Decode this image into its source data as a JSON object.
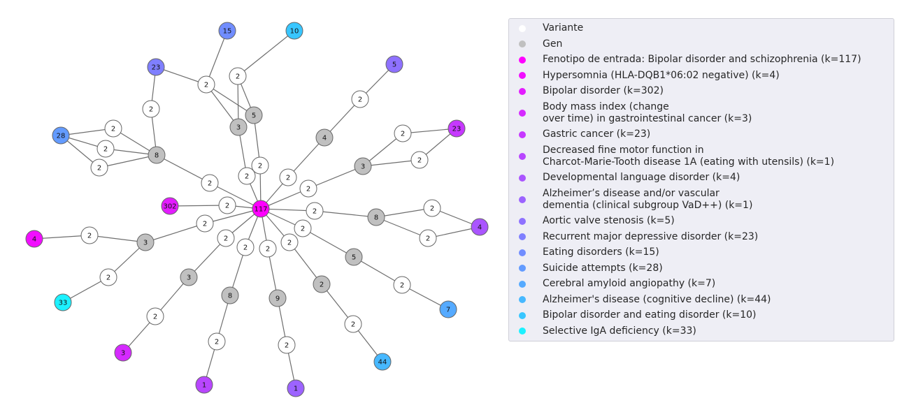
{
  "graph": {
    "nodes": [
      {
        "id": "root",
        "label": "117",
        "group": "input"
      },
      {
        "id": "c302",
        "label": "2",
        "group": "variant"
      },
      {
        "id": "p302",
        "label": "302",
        "group": "bipolar_disorder"
      },
      {
        "id": "c8l",
        "label": "2",
        "group": "variant"
      },
      {
        "id": "g8l",
        "label": "8",
        "group": "gene"
      },
      {
        "id": "a1",
        "label": "2",
        "group": "variant"
      },
      {
        "id": "a2",
        "label": "2",
        "group": "variant"
      },
      {
        "id": "a3",
        "label": "2",
        "group": "variant"
      },
      {
        "id": "p28",
        "label": "28",
        "group": "suicide"
      },
      {
        "id": "a4",
        "label": "2",
        "group": "variant"
      },
      {
        "id": "p23l",
        "label": "23",
        "group": "mdd"
      },
      {
        "id": "c5",
        "label": "2",
        "group": "variant"
      },
      {
        "id": "c3t",
        "label": "2",
        "group": "variant"
      },
      {
        "id": "g5",
        "label": "5",
        "group": "gene"
      },
      {
        "id": "g3t",
        "label": "3",
        "group": "gene"
      },
      {
        "id": "b1",
        "label": "2",
        "group": "variant"
      },
      {
        "id": "b2",
        "label": "2",
        "group": "variant"
      },
      {
        "id": "b3",
        "label": "2",
        "group": "variant"
      },
      {
        "id": "p15",
        "label": "15",
        "group": "eating"
      },
      {
        "id": "p10",
        "label": "10",
        "group": "bipolar_eating"
      },
      {
        "id": "c4",
        "label": "2",
        "group": "variant"
      },
      {
        "id": "g4",
        "label": "4",
        "group": "gene"
      },
      {
        "id": "d1",
        "label": "2",
        "group": "variant"
      },
      {
        "id": "p5",
        "label": "5",
        "group": "aortic"
      },
      {
        "id": "c3r",
        "label": "2",
        "group": "variant"
      },
      {
        "id": "g3r",
        "label": "3",
        "group": "gene"
      },
      {
        "id": "e1",
        "label": "2",
        "group": "variant"
      },
      {
        "id": "e2",
        "label": "2",
        "group": "variant"
      },
      {
        "id": "p23r",
        "label": "23",
        "group": "gastric"
      },
      {
        "id": "c8r",
        "label": "2",
        "group": "variant"
      },
      {
        "id": "g8r",
        "label": "8",
        "group": "gene"
      },
      {
        "id": "f1",
        "label": "2",
        "group": "variant"
      },
      {
        "id": "f2",
        "label": "2",
        "group": "variant"
      },
      {
        "id": "p4r",
        "label": "4",
        "group": "dev_language"
      },
      {
        "id": "c5r",
        "label": "2",
        "group": "variant"
      },
      {
        "id": "g5r",
        "label": "5",
        "group": "gene"
      },
      {
        "id": "h1",
        "label": "2",
        "group": "variant"
      },
      {
        "id": "p7",
        "label": "7",
        "group": "caa"
      },
      {
        "id": "c2s",
        "label": "2",
        "group": "variant"
      },
      {
        "id": "g2s",
        "label": "2",
        "group": "gene"
      },
      {
        "id": "i1",
        "label": "2",
        "group": "variant"
      },
      {
        "id": "p44",
        "label": "44",
        "group": "alz_decline"
      },
      {
        "id": "c9",
        "label": "2",
        "group": "variant"
      },
      {
        "id": "g9",
        "label": "9",
        "group": "gene"
      },
      {
        "id": "j1",
        "label": "2",
        "group": "variant"
      },
      {
        "id": "p1b",
        "label": "1",
        "group": "alz_vascular"
      },
      {
        "id": "c8b",
        "label": "2",
        "group": "variant"
      },
      {
        "id": "g8b",
        "label": "8",
        "group": "gene"
      },
      {
        "id": "k1",
        "label": "2",
        "group": "variant"
      },
      {
        "id": "p1a",
        "label": "1",
        "group": "fine_motor"
      },
      {
        "id": "c3b",
        "label": "2",
        "group": "variant"
      },
      {
        "id": "g3b",
        "label": "3",
        "group": "gene"
      },
      {
        "id": "m1",
        "label": "2",
        "group": "variant"
      },
      {
        "id": "p3",
        "label": "3",
        "group": "bmi"
      },
      {
        "id": "c3l",
        "label": "2",
        "group": "variant"
      },
      {
        "id": "g3l",
        "label": "3",
        "group": "gene"
      },
      {
        "id": "n1",
        "label": "2",
        "group": "variant"
      },
      {
        "id": "p4l",
        "label": "4",
        "group": "hypersomnia"
      },
      {
        "id": "n2",
        "label": "2",
        "group": "variant"
      },
      {
        "id": "p33",
        "label": "33",
        "group": "iga"
      }
    ],
    "edges": [
      [
        "root",
        "c302"
      ],
      [
        "c302",
        "p302"
      ],
      [
        "root",
        "c8l"
      ],
      [
        "c8l",
        "g8l"
      ],
      [
        "g8l",
        "a1"
      ],
      [
        "g8l",
        "a2"
      ],
      [
        "g8l",
        "a3"
      ],
      [
        "a1",
        "p28"
      ],
      [
        "a2",
        "p28"
      ],
      [
        "a3",
        "p28"
      ],
      [
        "g8l",
        "a4"
      ],
      [
        "a4",
        "p23l"
      ],
      [
        "root",
        "c5"
      ],
      [
        "c5",
        "g5"
      ],
      [
        "root",
        "c3t"
      ],
      [
        "c3t",
        "g3t"
      ],
      [
        "g5",
        "b1"
      ],
      [
        "g3t",
        "b1"
      ],
      [
        "g5",
        "b2"
      ],
      [
        "g3t",
        "b2"
      ],
      [
        "b1",
        "p23l"
      ],
      [
        "b1",
        "p15"
      ],
      [
        "b2",
        "p10"
      ],
      [
        "root",
        "c4"
      ],
      [
        "c4",
        "g4"
      ],
      [
        "g4",
        "d1"
      ],
      [
        "d1",
        "p5"
      ],
      [
        "root",
        "c3r"
      ],
      [
        "c3r",
        "g3r"
      ],
      [
        "g3r",
        "e1"
      ],
      [
        "g3r",
        "e2"
      ],
      [
        "e1",
        "p23r"
      ],
      [
        "e2",
        "p23r"
      ],
      [
        "root",
        "c8r"
      ],
      [
        "c8r",
        "g8r"
      ],
      [
        "g8r",
        "f1"
      ],
      [
        "g8r",
        "f2"
      ],
      [
        "f1",
        "p4r"
      ],
      [
        "f2",
        "p4r"
      ],
      [
        "root",
        "c5r"
      ],
      [
        "c5r",
        "g5r"
      ],
      [
        "g5r",
        "h1"
      ],
      [
        "h1",
        "p7"
      ],
      [
        "root",
        "c2s"
      ],
      [
        "c2s",
        "g2s"
      ],
      [
        "g2s",
        "i1"
      ],
      [
        "i1",
        "p44"
      ],
      [
        "root",
        "c9"
      ],
      [
        "c9",
        "g9"
      ],
      [
        "g9",
        "j1"
      ],
      [
        "j1",
        "p1b"
      ],
      [
        "root",
        "c8b"
      ],
      [
        "c8b",
        "g8b"
      ],
      [
        "g8b",
        "k1"
      ],
      [
        "k1",
        "p1a"
      ],
      [
        "root",
        "c3b"
      ],
      [
        "c3b",
        "g3b"
      ],
      [
        "g3b",
        "m1"
      ],
      [
        "m1",
        "p3"
      ],
      [
        "root",
        "c3l"
      ],
      [
        "c3l",
        "g3l"
      ],
      [
        "g3l",
        "n1"
      ],
      [
        "n1",
        "p4l"
      ],
      [
        "g3l",
        "n2"
      ],
      [
        "n2",
        "p33"
      ]
    ]
  },
  "legend": {
    "items": [
      {
        "key": "variant",
        "label": "Variante",
        "color": "#ffffff"
      },
      {
        "key": "gene",
        "label": "Gen",
        "color": "#c0c0c0"
      },
      {
        "key": "input",
        "label": "Fenotipo de entrada: Bipolar disorder and schizophrenia (k=117)",
        "color": "#ff00ff"
      },
      {
        "key": "hypersomnia",
        "label": "Hypersomnia (HLA-DQB1*06:02 negative) (k=4)",
        "color": "#f10eff"
      },
      {
        "key": "bipolar_disorder",
        "label": "Bipolar disorder (k=302)",
        "color": "#e31cff"
      },
      {
        "key": "bmi",
        "label": "Body mass index (change\nover time) in gastrointestinal cancer (k=3)",
        "color": "#d52aff"
      },
      {
        "key": "gastric",
        "label": "Gastric cancer (k=23)",
        "color": "#c638ff"
      },
      {
        "key": "fine_motor",
        "label": "Decreased fine motor function in\nCharcot-Marie-Tooth disease 1A (eating with utensils) (k=1)",
        "color": "#b846ff"
      },
      {
        "key": "dev_language",
        "label": "Developmental language disorder (k=4)",
        "color": "#aa55ff"
      },
      {
        "key": "alz_vascular",
        "label": "Alzheimer’s disease and/or vascular\ndementia (clinical subgroup VaD++) (k=1)",
        "color": "#9c63ff"
      },
      {
        "key": "aortic",
        "label": "Aortic valve stenosis (k=5)",
        "color": "#8e71ff"
      },
      {
        "key": "mdd",
        "label": "Recurrent major depressive disorder (k=23)",
        "color": "#7f7fff"
      },
      {
        "key": "eating",
        "label": "Eating disorders (k=15)",
        "color": "#718dff"
      },
      {
        "key": "suicide",
        "label": "Suicide attempts (k=28)",
        "color": "#639bff"
      },
      {
        "key": "caa",
        "label": "Cerebral amyloid angiopathy (k=7)",
        "color": "#55aaff"
      },
      {
        "key": "alz_decline",
        "label": "Alzheimer's disease (cognitive decline) (k=44)",
        "color": "#47b8ff"
      },
      {
        "key": "bipolar_eating",
        "label": "Bipolar disorder and eating disorder (k=10)",
        "color": "#38c6ff"
      },
      {
        "key": "iga",
        "label": "Selective IgA deficiency (k=33)",
        "color": "#1cf1ff"
      }
    ]
  }
}
